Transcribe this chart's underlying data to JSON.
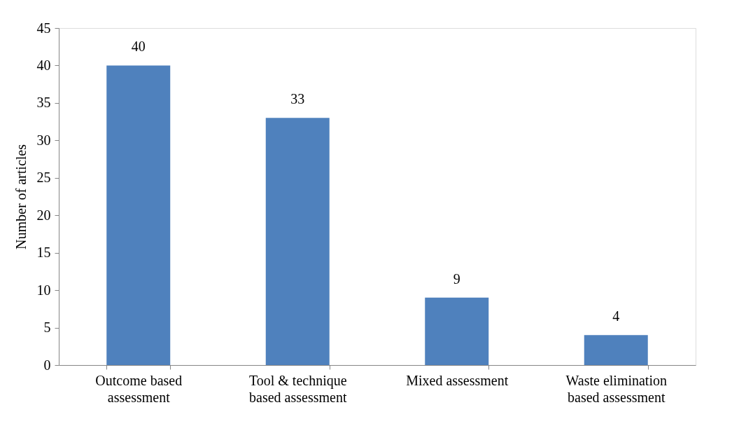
{
  "chart_data": {
    "type": "bar",
    "ylabel": "Number of articles",
    "categories": [
      "Outcome based\nassessment",
      "Tool & technique\nbased assessment",
      "Mixed assessment",
      "Waste elimination\nbased assessment"
    ],
    "values": [
      40,
      33,
      9,
      4
    ],
    "color": "#4f81bd",
    "ylim": [
      0,
      45
    ],
    "yticks": [
      0,
      5,
      10,
      15,
      20,
      25,
      30,
      35,
      40,
      45
    ],
    "grid": false,
    "data_labels": true
  }
}
